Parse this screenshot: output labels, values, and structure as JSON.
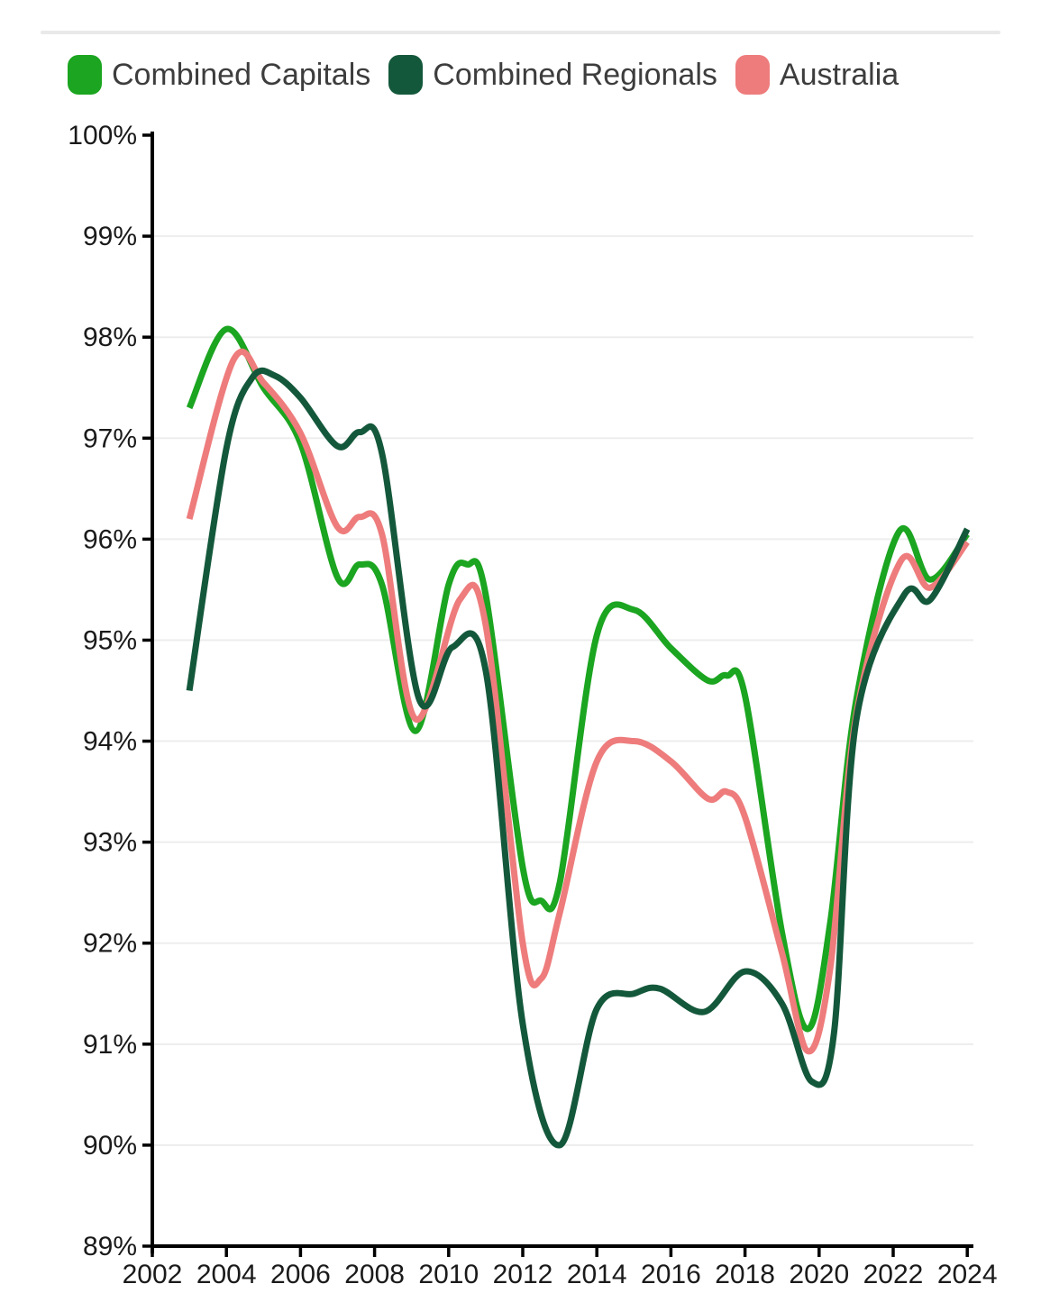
{
  "style": {
    "background": "#ffffff",
    "divider": "#e9e9e9",
    "grid": "#ededed",
    "axis": "#000000",
    "tick_label_color": "#1a1a1a",
    "legend_text_color": "#3d3d3d"
  },
  "chart_data": {
    "type": "line",
    "title": "",
    "xlabel": "",
    "ylabel": "",
    "smoothing": "catmull-rom",
    "grid": "horizontal",
    "legend_position": "top-left",
    "x": {
      "min": 2002,
      "max": 2024,
      "tick_step": 2,
      "tick_labels": [
        "2002",
        "2004",
        "2006",
        "2008",
        "2010",
        "2012",
        "2014",
        "2016",
        "2018",
        "2020",
        "2022",
        "2024"
      ]
    },
    "y": {
      "min": 89,
      "max": 100,
      "tick_step": 1,
      "unit": "%",
      "tick_labels": [
        "100%",
        "99%",
        "98%",
        "97%",
        "96%",
        "95%",
        "94%",
        "93%",
        "92%",
        "91%",
        "90%",
        "89%"
      ]
    },
    "draw_order": [
      0,
      2,
      1
    ],
    "series": [
      {
        "name": "Combined Capitals",
        "color": "#1ba520",
        "points": [
          [
            2003,
            97.3
          ],
          [
            2004,
            98.08
          ],
          [
            2005,
            97.5
          ],
          [
            2006,
            96.95
          ],
          [
            2007,
            95.62
          ],
          [
            2007.6,
            95.75
          ],
          [
            2008.2,
            95.55
          ],
          [
            2009.1,
            94.1
          ],
          [
            2010,
            95.55
          ],
          [
            2010.5,
            95.75
          ],
          [
            2011,
            95.45
          ],
          [
            2012,
            92.75
          ],
          [
            2012.5,
            92.42
          ],
          [
            2013,
            92.6
          ],
          [
            2014,
            95.05
          ],
          [
            2015,
            95.3
          ],
          [
            2016,
            94.92
          ],
          [
            2017,
            94.6
          ],
          [
            2017.5,
            94.65
          ],
          [
            2018,
            94.45
          ],
          [
            2019,
            92.1
          ],
          [
            2019.7,
            91.15
          ],
          [
            2020.3,
            92.2
          ],
          [
            2021,
            94.4
          ],
          [
            2022.15,
            96.07
          ],
          [
            2023,
            95.6
          ],
          [
            2024,
            96.05
          ]
        ]
      },
      {
        "name": "Combined Regionals",
        "color": "#14583b",
        "points": [
          [
            2003,
            94.5
          ],
          [
            2004,
            96.9
          ],
          [
            2004.7,
            97.6
          ],
          [
            2005.3,
            97.62
          ],
          [
            2006,
            97.4
          ],
          [
            2007,
            96.92
          ],
          [
            2007.6,
            97.06
          ],
          [
            2008.2,
            96.85
          ],
          [
            2009.2,
            94.42
          ],
          [
            2010.1,
            94.93
          ],
          [
            2011,
            94.7
          ],
          [
            2012,
            91.2
          ],
          [
            2013,
            90.0
          ],
          [
            2014,
            91.35
          ],
          [
            2015,
            91.5
          ],
          [
            2015.7,
            91.55
          ],
          [
            2016.9,
            91.32
          ],
          [
            2018,
            91.72
          ],
          [
            2019,
            91.4
          ],
          [
            2019.8,
            90.63
          ],
          [
            2020.4,
            91.1
          ],
          [
            2021,
            94.2
          ],
          [
            2022.3,
            95.45
          ],
          [
            2023,
            95.4
          ],
          [
            2024,
            96.1
          ]
        ]
      },
      {
        "name": "Australia",
        "color": "#ee7c7c",
        "points": [
          [
            2003,
            96.2
          ],
          [
            2004.2,
            97.78
          ],
          [
            2005,
            97.55
          ],
          [
            2006,
            97.05
          ],
          [
            2007,
            96.12
          ],
          [
            2007.6,
            96.22
          ],
          [
            2008.2,
            96.05
          ],
          [
            2009.1,
            94.22
          ],
          [
            2010.3,
            95.4
          ],
          [
            2011,
            95.15
          ],
          [
            2012,
            92.0
          ],
          [
            2012.5,
            91.65
          ],
          [
            2013,
            92.3
          ],
          [
            2014,
            93.8
          ],
          [
            2015,
            94.0
          ],
          [
            2016,
            93.8
          ],
          [
            2017,
            93.43
          ],
          [
            2017.5,
            93.5
          ],
          [
            2018,
            93.25
          ],
          [
            2019,
            91.9
          ],
          [
            2019.7,
            90.93
          ],
          [
            2020.3,
            91.75
          ],
          [
            2021,
            94.25
          ],
          [
            2022.2,
            95.78
          ],
          [
            2023,
            95.52
          ],
          [
            2024,
            95.97
          ]
        ]
      }
    ]
  }
}
